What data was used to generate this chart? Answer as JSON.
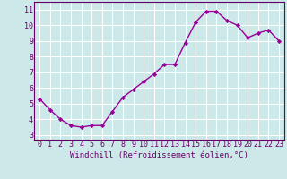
{
  "x": [
    0,
    1,
    2,
    3,
    4,
    5,
    6,
    7,
    8,
    9,
    10,
    11,
    12,
    13,
    14,
    15,
    16,
    17,
    18,
    19,
    20,
    21,
    22,
    23
  ],
  "y": [
    5.3,
    4.6,
    4.0,
    3.6,
    3.5,
    3.6,
    3.6,
    4.5,
    5.4,
    5.9,
    6.4,
    6.9,
    7.5,
    7.5,
    8.9,
    10.2,
    10.9,
    10.9,
    10.3,
    10.0,
    9.2,
    9.5,
    9.7,
    9.0
  ],
  "line_color": "#990099",
  "marker": "D",
  "markersize": 2.2,
  "linewidth": 1.0,
  "xlabel": "Windchill (Refroidissement éolien,°C)",
  "xlabel_fontsize": 6.5,
  "ylabel_ticks": [
    3,
    4,
    5,
    6,
    7,
    8,
    9,
    10,
    11
  ],
  "xlim": [
    -0.5,
    23.5
  ],
  "ylim": [
    2.7,
    11.5
  ],
  "background_color": "#cce8e8",
  "grid_color": "#ffffff",
  "tick_label_fontsize": 6.0,
  "xtick_labels": [
    "0",
    "1",
    "2",
    "3",
    "4",
    "5",
    "6",
    "7",
    "8",
    "9",
    "10",
    "11",
    "12",
    "13",
    "14",
    "15",
    "16",
    "17",
    "18",
    "19",
    "20",
    "21",
    "22",
    "23"
  ],
  "spine_color": "#660066",
  "label_color": "#660066"
}
